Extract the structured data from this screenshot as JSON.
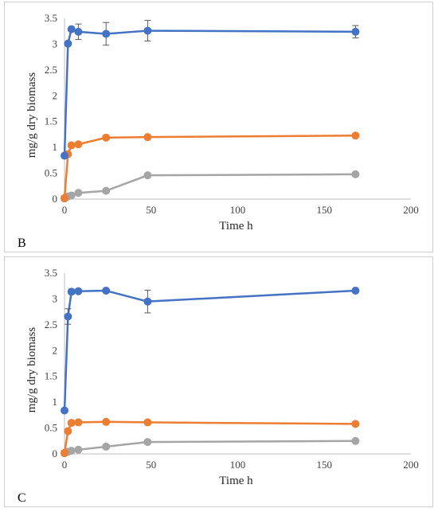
{
  "chart_data": [
    {
      "type": "line",
      "panel_label": "B",
      "xlabel": "Time h",
      "ylabel": "mg/g dry biomass",
      "xlim": [
        0,
        200
      ],
      "ylim": [
        0,
        3.5
      ],
      "x_ticks": [
        "0",
        "50",
        "100",
        "150",
        "200"
      ],
      "y_ticks": [
        "0",
        "0.5",
        "1",
        "1.5",
        "2",
        "2.5",
        "3",
        "3.5"
      ],
      "grid": false,
      "legend": "none",
      "series": [
        {
          "color": "#4472C4",
          "x": [
            0,
            2,
            4,
            8,
            24,
            48,
            168
          ],
          "y": [
            0.84,
            3.01,
            3.29,
            3.24,
            3.2,
            3.26,
            3.24
          ],
          "err": [
            0,
            0,
            0,
            0.15,
            0.22,
            0.2,
            0.12
          ]
        },
        {
          "color": "#ED7D31",
          "x": [
            0,
            2,
            4,
            8,
            24,
            48,
            168
          ],
          "y": [
            0.02,
            0.87,
            1.04,
            1.06,
            1.19,
            1.2,
            1.23
          ],
          "err": [
            0,
            0,
            0,
            0,
            0,
            0,
            0
          ]
        },
        {
          "color": "#A5A5A5",
          "x": [
            0,
            2,
            4,
            8,
            24,
            48,
            168
          ],
          "y": [
            0.01,
            0.05,
            0.07,
            0.12,
            0.16,
            0.46,
            0.48
          ],
          "err": [
            0,
            0,
            0,
            0,
            0,
            0,
            0
          ]
        }
      ]
    },
    {
      "type": "line",
      "panel_label": "C",
      "xlabel": "Time h",
      "ylabel": "mg/g dry biomass",
      "xlim": [
        0,
        200
      ],
      "ylim": [
        0,
        3.5
      ],
      "x_ticks": [
        "0",
        "50",
        "100",
        "150",
        "200"
      ],
      "y_ticks": [
        "0",
        "0.5",
        "1",
        "1.5",
        "2",
        "2.5",
        "3",
        "3.5"
      ],
      "grid": false,
      "legend": "none",
      "series": [
        {
          "color": "#4472C4",
          "x": [
            0,
            2,
            4,
            8,
            24,
            48,
            168
          ],
          "y": [
            0.84,
            2.66,
            3.14,
            3.15,
            3.16,
            2.95,
            3.16
          ],
          "err": [
            0,
            0.15,
            0.05,
            0,
            0,
            0.22,
            0
          ]
        },
        {
          "color": "#ED7D31",
          "x": [
            0,
            2,
            4,
            8,
            24,
            48,
            168
          ],
          "y": [
            0.02,
            0.44,
            0.6,
            0.61,
            0.62,
            0.61,
            0.58
          ],
          "err": [
            0,
            0,
            0,
            0,
            0,
            0,
            0
          ]
        },
        {
          "color": "#A5A5A5",
          "x": [
            0,
            2,
            4,
            8,
            24,
            48,
            168
          ],
          "y": [
            0.01,
            0.04,
            0.06,
            0.08,
            0.14,
            0.23,
            0.25
          ],
          "err": [
            0,
            0,
            0,
            0,
            0,
            0,
            0
          ]
        }
      ]
    }
  ]
}
